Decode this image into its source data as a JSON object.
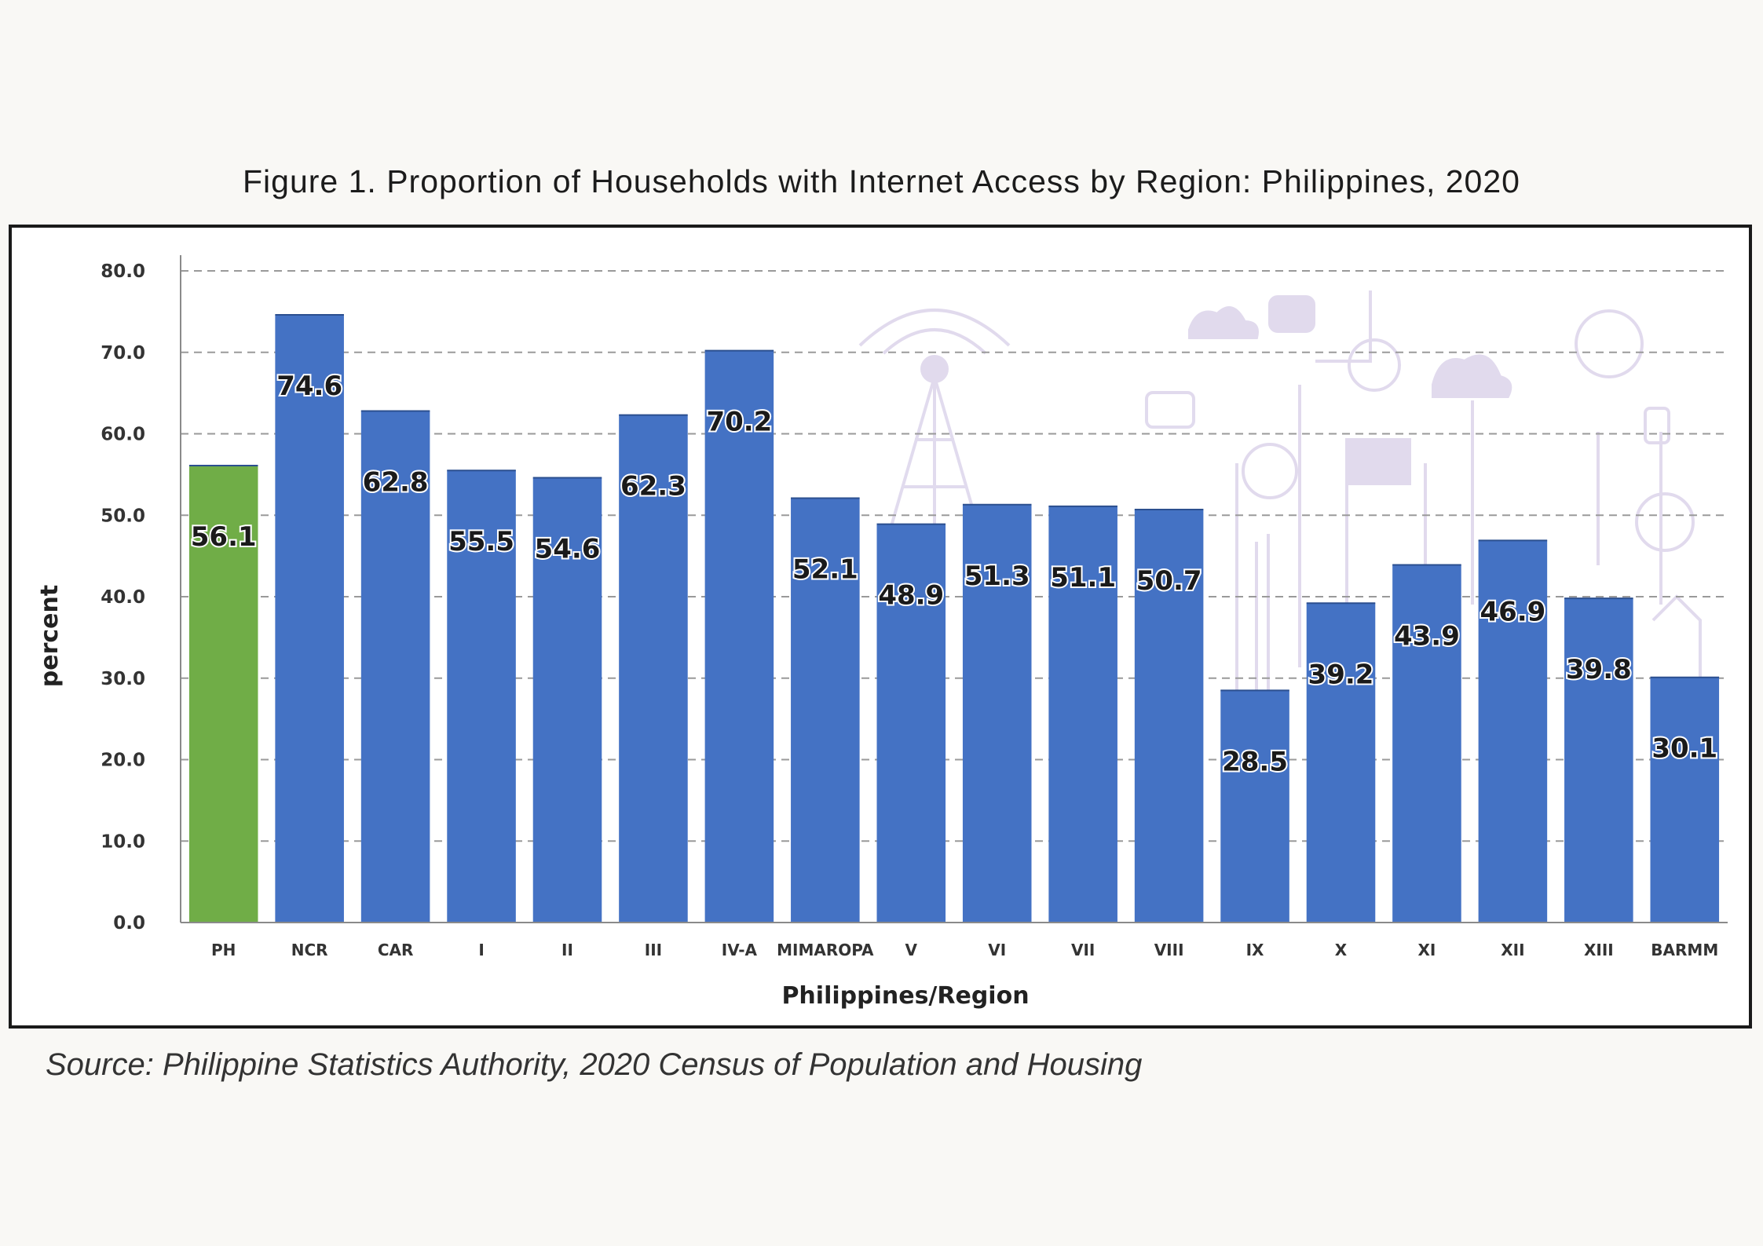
{
  "chart_data": {
    "type": "bar",
    "title": "Figure 1. Proportion of Households with Internet Access by Region: Philippines, 2020",
    "xlabel": "Philippines/Region",
    "ylabel": "percent",
    "ylim": [
      0,
      80
    ],
    "yticks": [
      "0.0",
      "10.0",
      "20.0",
      "30.0",
      "40.0",
      "50.0",
      "60.0",
      "70.0",
      "80.0"
    ],
    "categories": [
      "PH",
      "NCR",
      "CAR",
      "I",
      "II",
      "III",
      "IV-A",
      "MIMAROPA",
      "V",
      "VI",
      "VII",
      "VIII",
      "IX",
      "X",
      "XI",
      "XII",
      "XIII",
      "BARMM"
    ],
    "values": [
      56.1,
      74.6,
      62.8,
      55.5,
      54.6,
      62.3,
      70.2,
      52.1,
      48.9,
      51.3,
      51.1,
      50.7,
      28.5,
      39.2,
      43.9,
      46.9,
      39.8,
      30.1
    ],
    "value_labels": [
      "56.1",
      "74.6",
      "62.8",
      "55.5",
      "54.6",
      "62.3",
      "70.2",
      "52.1",
      "48.9",
      "51.3",
      "51.1",
      "50.7",
      "28.5",
      "39.2",
      "43.9",
      "46.9",
      "39.8",
      "30.1"
    ],
    "grid": true,
    "legend": "none",
    "colors": {
      "highlight": "#70ad47",
      "bar": "#4472c4",
      "decoration": "#c9bde0"
    }
  },
  "source": "Source:  Philippine Statistics Authority, 2020 Census of Population and Housing"
}
